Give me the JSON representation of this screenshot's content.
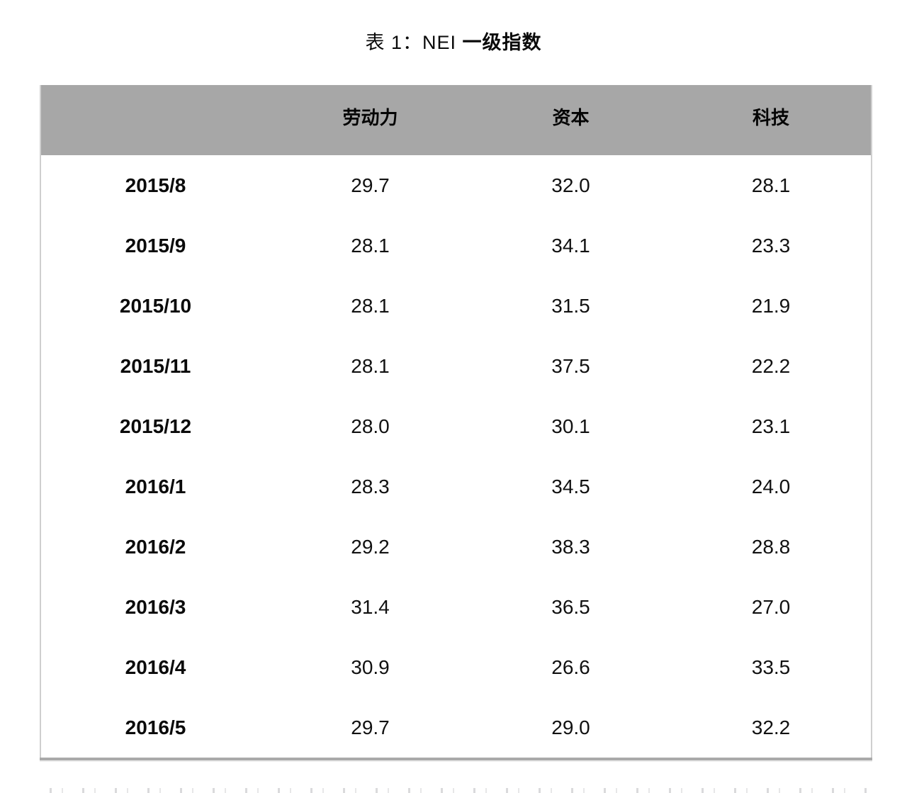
{
  "title": {
    "prefix": "表 1：NEI ",
    "emphasis": "一级指数",
    "full": "表 1：NEI 一级指数"
  },
  "colors": {
    "header_bg": "#a7a7a7",
    "table_side_border": "#cfcfcf",
    "table_bottom_border": "#a9a9a9",
    "text": "#000000"
  },
  "table": {
    "columns": [
      "",
      "劳动力",
      "资本",
      "科技"
    ],
    "rows": [
      {
        "label": "2015/8",
        "values": [
          "29.7",
          "32.0",
          "28.1"
        ]
      },
      {
        "label": "2015/9",
        "values": [
          "28.1",
          "34.1",
          "23.3"
        ]
      },
      {
        "label": "2015/10",
        "values": [
          "28.1",
          "31.5",
          "21.9"
        ]
      },
      {
        "label": "2015/11",
        "values": [
          "28.1",
          "37.5",
          "22.2"
        ]
      },
      {
        "label": "2015/12",
        "values": [
          "28.0",
          "30.1",
          "23.1"
        ]
      },
      {
        "label": "2016/1",
        "values": [
          "28.3",
          "34.5",
          "24.0"
        ]
      },
      {
        "label": "2016/2",
        "values": [
          "29.2",
          "38.3",
          "28.8"
        ]
      },
      {
        "label": "2016/3",
        "values": [
          "31.4",
          "36.5",
          "27.0"
        ]
      },
      {
        "label": "2016/4",
        "values": [
          "30.9",
          "26.6",
          "33.5"
        ]
      },
      {
        "label": "2016/5",
        "values": [
          "29.7",
          "29.0",
          "32.2"
        ]
      }
    ]
  },
  "chart_data": {
    "type": "table",
    "title": "表 1：NEI 一级指数",
    "categories": [
      "2015/8",
      "2015/9",
      "2015/10",
      "2015/11",
      "2015/12",
      "2016/1",
      "2016/2",
      "2016/3",
      "2016/4",
      "2016/5"
    ],
    "series": [
      {
        "name": "劳动力",
        "values": [
          29.7,
          28.1,
          28.1,
          28.1,
          28.0,
          28.3,
          29.2,
          31.4,
          30.9,
          29.7
        ]
      },
      {
        "name": "资本",
        "values": [
          32.0,
          34.1,
          31.5,
          37.5,
          30.1,
          34.5,
          38.3,
          36.5,
          26.6,
          29.0
        ]
      },
      {
        "name": "科技",
        "values": [
          28.1,
          23.3,
          21.9,
          22.2,
          23.1,
          24.0,
          28.8,
          27.0,
          33.5,
          32.2
        ]
      }
    ]
  }
}
